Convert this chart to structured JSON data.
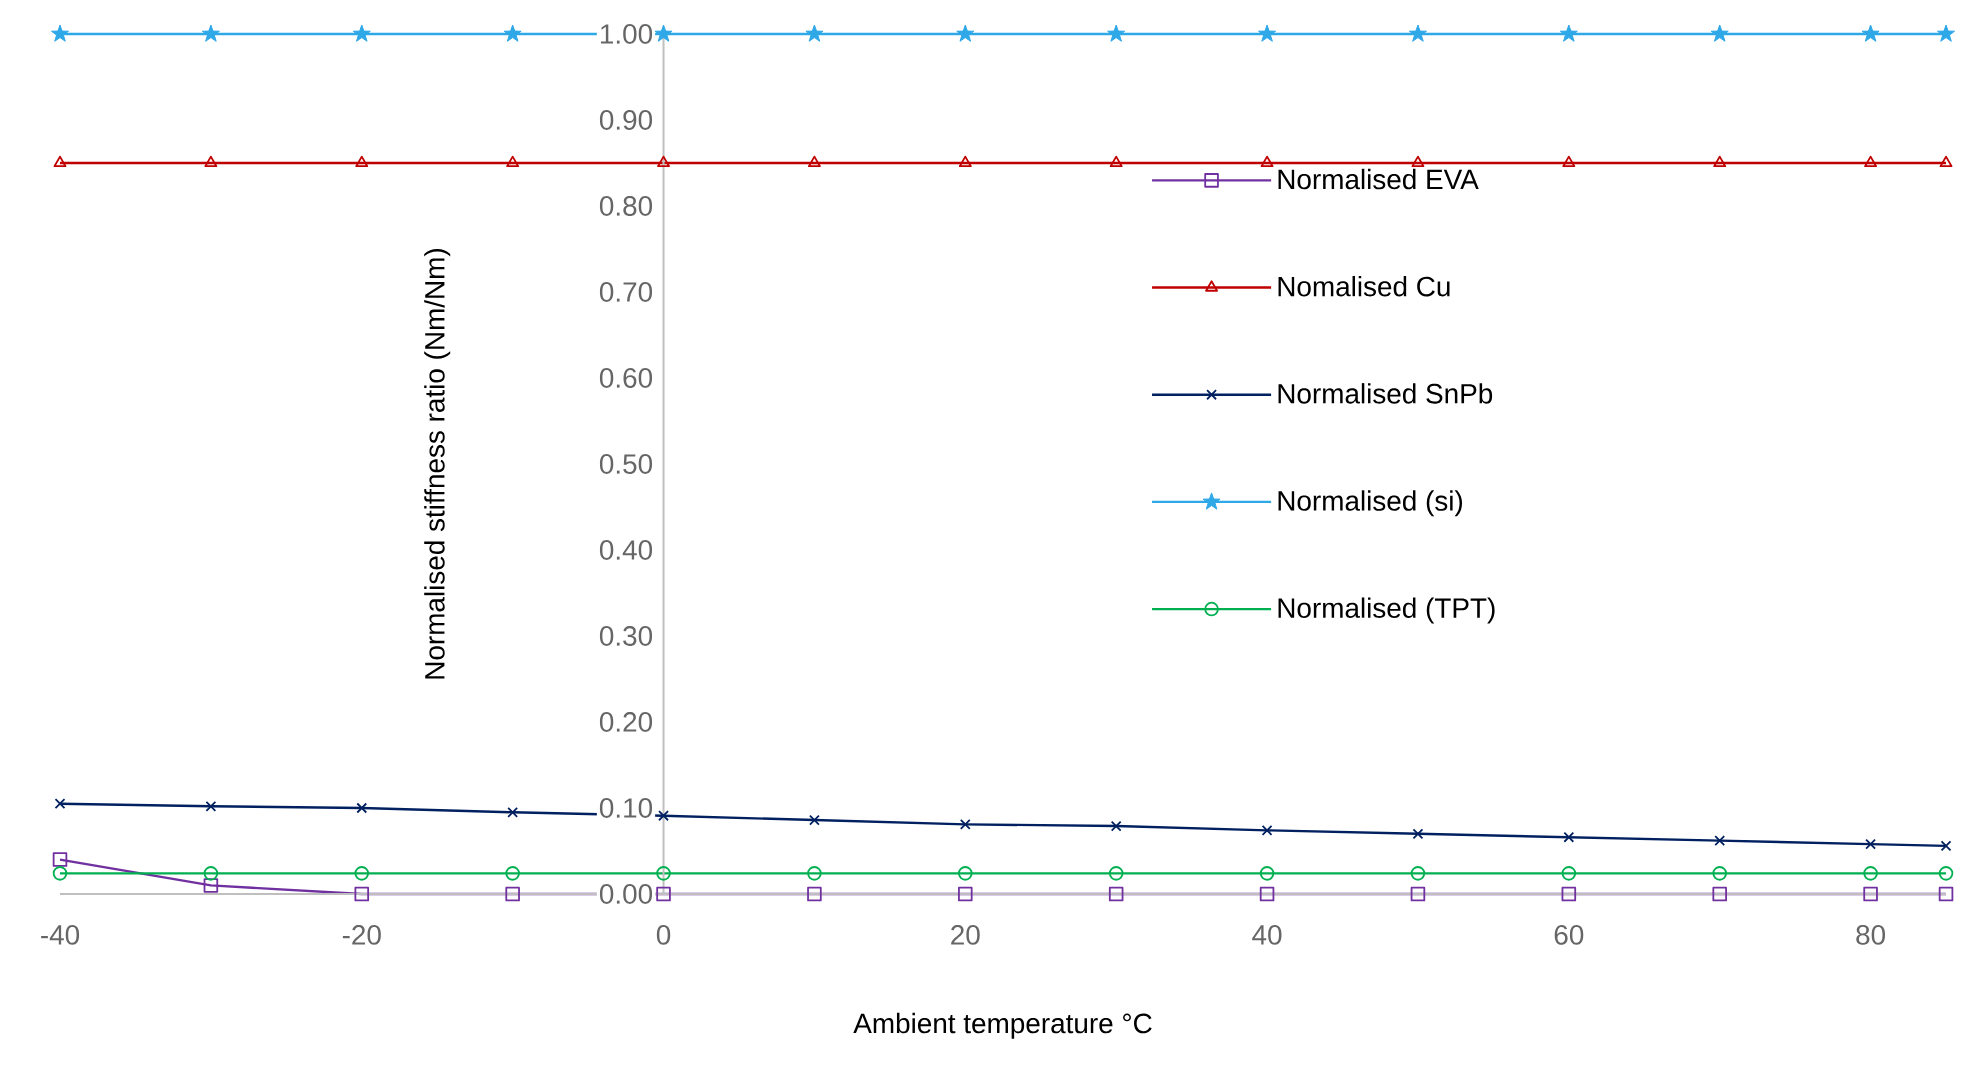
{
  "chart_data": {
    "type": "line",
    "xlabel": "Ambient temperature °C",
    "ylabel": "Normalised stiffness ratio (Nm/Nm)",
    "x": [
      -40,
      -30,
      -20,
      -10,
      0,
      10,
      20,
      30,
      40,
      50,
      60,
      70,
      80,
      85
    ],
    "series": [
      {
        "name": "Normalised EVA",
        "color": "#7030a0",
        "marker": "square",
        "values": [
          0.04,
          0.01,
          0,
          0,
          0,
          0,
          0,
          0,
          0,
          0,
          0,
          0,
          0,
          0
        ]
      },
      {
        "name": "Nomalised Cu",
        "color": "#c00000",
        "marker": "triangle",
        "values": [
          0.85,
          0.85,
          0.85,
          0.85,
          0.85,
          0.85,
          0.85,
          0.85,
          0.85,
          0.85,
          0.85,
          0.85,
          0.85,
          0.85
        ]
      },
      {
        "name": "Normalised SnPb",
        "color": "#002060",
        "marker": "cross",
        "values": [
          0.105,
          0.102,
          0.1,
          0.095,
          0.091,
          0.086,
          0.081,
          0.079,
          0.074,
          0.07,
          0.066,
          0.062,
          0.058,
          0.056
        ]
      },
      {
        "name": "Normalised (si)",
        "color": "#2fa8e8",
        "marker": "star",
        "values": [
          1,
          1,
          1,
          1,
          1,
          1,
          1,
          1,
          1,
          1,
          1,
          1,
          1,
          1
        ]
      },
      {
        "name": "Normalised (TPT)",
        "color": "#00b050",
        "marker": "circle",
        "values": [
          0.024,
          0.024,
          0.024,
          0.024,
          0.024,
          0.024,
          0.024,
          0.024,
          0.024,
          0.024,
          0.024,
          0.024,
          0.024,
          0.024
        ]
      }
    ],
    "xlim": [
      -40,
      85
    ],
    "xticks": [
      -40,
      -20,
      0,
      20,
      40,
      60,
      80
    ],
    "ylim": [
      0,
      1
    ],
    "yticks": [
      {
        "value": 0,
        "label": "0.00"
      },
      {
        "value": 0.1,
        "label": "0.10"
      },
      {
        "value": 0.2,
        "label": "0.20"
      },
      {
        "value": 0.3,
        "label": "0.30"
      },
      {
        "value": 0.4,
        "label": "0.40"
      },
      {
        "value": 0.5,
        "label": "0.50"
      },
      {
        "value": 0.6,
        "label": "0.60"
      },
      {
        "value": 0.7,
        "label": "0.70"
      },
      {
        "value": 0.8,
        "label": "0.80"
      },
      {
        "value": 0.9,
        "label": "0.90"
      },
      {
        "value": 1,
        "label": "1.00"
      }
    ],
    "legend": "right"
  }
}
